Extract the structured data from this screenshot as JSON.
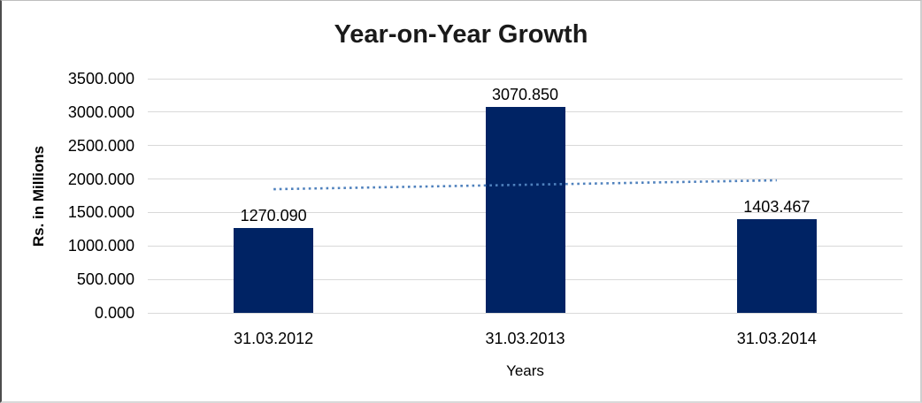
{
  "chart_data": {
    "type": "bar",
    "title": "Year-on-Year Growth",
    "xlabel": "Years",
    "ylabel": "Rs. in Millions",
    "categories": [
      "31.03.2012",
      "31.03.2013",
      "31.03.2014"
    ],
    "values": [
      1270.09,
      3070.85,
      1403.467
    ],
    "data_labels": [
      "1270.090",
      "3070.850",
      "1403.467"
    ],
    "ylim": [
      0,
      3500
    ],
    "ytick_step": 500,
    "ytick_labels": [
      "0.000",
      "500.000",
      "1000.000",
      "1500.000",
      "2000.000",
      "2500.000",
      "3000.000",
      "3500.000"
    ],
    "grid": "horizontal",
    "legend": "none",
    "bar_color": "#002364",
    "gridline_color": "#d9d9d9",
    "text_color": "#000000",
    "title_color": "#1a1a1a",
    "trendline": {
      "type": "linear",
      "style": "dotted",
      "color": "#4f81bd",
      "start_value": 1848,
      "end_value": 1981
    }
  }
}
